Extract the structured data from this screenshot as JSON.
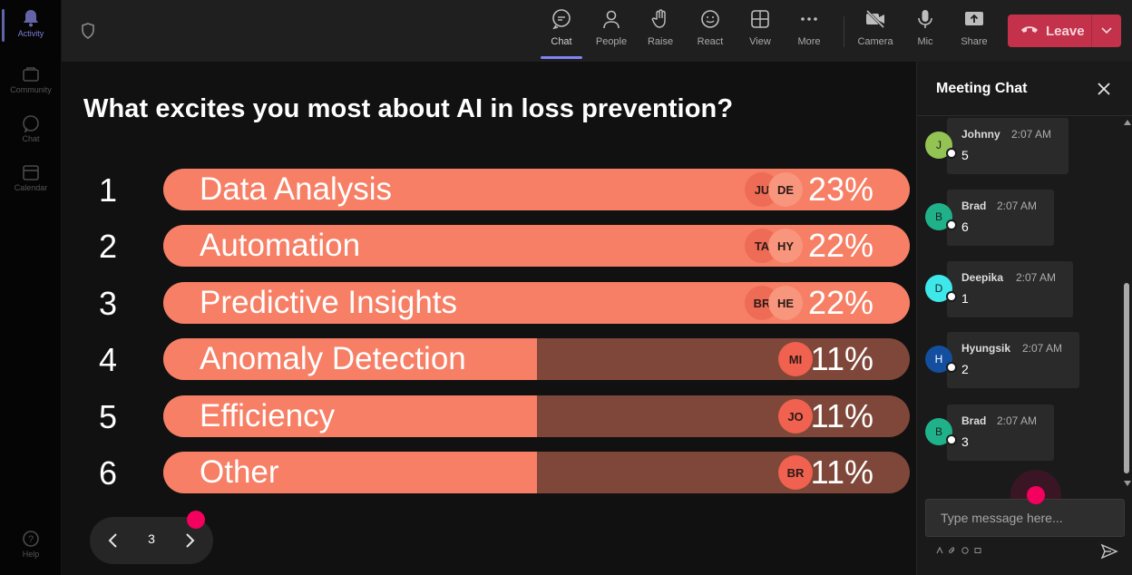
{
  "rail": {
    "items": [
      {
        "label": "Activity",
        "icon": "bell-icon"
      },
      {
        "label": "Community",
        "icon": "community-icon"
      },
      {
        "label": "Chat",
        "icon": "chat-icon"
      },
      {
        "label": "Calendar",
        "icon": "calendar-icon"
      },
      {
        "label": "Help",
        "icon": "help-icon"
      }
    ]
  },
  "toolbar": {
    "buttons": [
      {
        "label": "Chat",
        "icon": "chat-icon"
      },
      {
        "label": "People",
        "icon": "people-icon"
      },
      {
        "label": "Raise",
        "icon": "raise-hand-icon"
      },
      {
        "label": "React",
        "icon": "react-icon"
      },
      {
        "label": "View",
        "icon": "view-icon"
      },
      {
        "label": "More",
        "icon": "more-icon"
      },
      {
        "label": "Camera",
        "icon": "camera-off-icon"
      },
      {
        "label": "Mic",
        "icon": "mic-icon"
      },
      {
        "label": "Share",
        "icon": "share-icon"
      }
    ],
    "leave_label": "Leave",
    "leave_color": "#c4314b"
  },
  "poll": {
    "question": "What excites you most about AI in loss prevention?",
    "options": [
      {
        "num": "1",
        "label": "Data Analysis",
        "percent": "23%",
        "fill": 1.0,
        "avatars": [
          "JU",
          "DE"
        ]
      },
      {
        "num": "2",
        "label": "Automation",
        "percent": "22%",
        "fill": 1.0,
        "avatars": [
          "TA",
          "HY"
        ]
      },
      {
        "num": "3",
        "label": "Predictive Insights",
        "percent": "22%",
        "fill": 1.0,
        "avatars": [
          "BR",
          "HE"
        ]
      },
      {
        "num": "4",
        "label": "Anomaly Detection",
        "percent": "11%",
        "fill": 0.5,
        "avatars": [
          "MI"
        ]
      },
      {
        "num": "5",
        "label": "Efficiency",
        "percent": "11%",
        "fill": 0.5,
        "avatars": [
          "JO"
        ]
      },
      {
        "num": "6",
        "label": "Other",
        "percent": "11%",
        "fill": 0.5,
        "avatars": [
          "BR"
        ]
      }
    ],
    "bar_color": "#f67f65",
    "bar_track_color": "#7f4739"
  },
  "pager": {
    "page": "3"
  },
  "chat": {
    "title": "Meeting Chat",
    "messages": [
      {
        "initial": "J",
        "author": "Johnny",
        "time": "2:07 AM",
        "text": "5",
        "color": "#92c353"
      },
      {
        "initial": "B",
        "author": "Brad",
        "time": "2:07 AM",
        "text": "6",
        "color": "#1fb28a"
      },
      {
        "initial": "D",
        "author": "Deepika",
        "time": "2:07 AM",
        "text": "1",
        "color": "#3ee8ea"
      },
      {
        "initial": "H",
        "author": "Hyungsik",
        "time": "2:07 AM",
        "text": "2",
        "color": "#134f9e"
      },
      {
        "initial": "B",
        "author": "Brad",
        "time": "2:07 AM",
        "text": "3",
        "color": "#1fb28a"
      }
    ],
    "compose_placeholder": "Type message here..."
  }
}
